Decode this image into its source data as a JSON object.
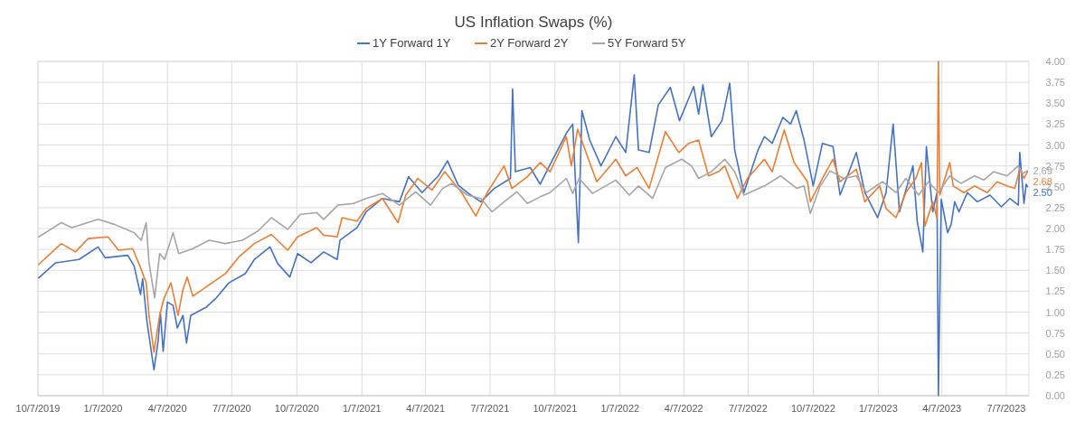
{
  "chart_data": {
    "type": "line",
    "title": "US Inflation Swaps (%)",
    "legend": "top",
    "grid": true,
    "line_style": "solid",
    "xlim": [
      "2019-10-07",
      "2023-08-08"
    ],
    "xticks": [
      {
        "value": "2019-10-07",
        "label": "10/7/2019"
      },
      {
        "value": "2020-01-07",
        "label": "1/7/2020"
      },
      {
        "value": "2020-04-07",
        "label": "4/7/2020"
      },
      {
        "value": "2020-07-07",
        "label": "7/7/2020"
      },
      {
        "value": "2020-10-07",
        "label": "10/7/2020"
      },
      {
        "value": "2021-01-07",
        "label": "1/7/2021"
      },
      {
        "value": "2021-04-07",
        "label": "4/7/2021"
      },
      {
        "value": "2021-07-07",
        "label": "7/7/2021"
      },
      {
        "value": "2021-10-07",
        "label": "10/7/2021"
      },
      {
        "value": "2022-01-07",
        "label": "1/7/2022"
      },
      {
        "value": "2022-04-07",
        "label": "4/7/2022"
      },
      {
        "value": "2022-07-07",
        "label": "7/7/2022"
      },
      {
        "value": "2022-10-07",
        "label": "10/7/2022"
      },
      {
        "value": "2023-01-07",
        "label": "1/7/2023"
      },
      {
        "value": "2023-04-07",
        "label": "4/7/2023"
      },
      {
        "value": "2023-07-07",
        "label": "7/7/2023"
      }
    ],
    "ylim": [
      0,
      4
    ],
    "yticks": [
      {
        "value": 0,
        "label": "0.00"
      },
      {
        "value": 0.25,
        "label": "0.25"
      },
      {
        "value": 0.5,
        "label": "0.50"
      },
      {
        "value": 0.75,
        "label": "0.75"
      },
      {
        "value": 1,
        "label": "1.00"
      },
      {
        "value": 1.25,
        "label": "1.25"
      },
      {
        "value": 1.5,
        "label": "1.50"
      },
      {
        "value": 1.75,
        "label": "1.75"
      },
      {
        "value": 2,
        "label": "2.00"
      },
      {
        "value": 2.25,
        "label": "2.25"
      },
      {
        "value": 2.5,
        "label": "2.50"
      },
      {
        "value": 2.75,
        "label": "2.75"
      },
      {
        "value": 3,
        "label": "3.00"
      },
      {
        "value": 3.25,
        "label": "3.25"
      },
      {
        "value": 3.5,
        "label": "3.50"
      },
      {
        "value": 3.75,
        "label": "3.75"
      },
      {
        "value": 4,
        "label": "4.00"
      }
    ],
    "annotations": [
      {
        "text": "2.50",
        "x": "2023-08-06",
        "y": 2.5
      },
      {
        "text": "2.68",
        "x": "2023-08-06",
        "y": 2.68
      },
      {
        "text": "2.69",
        "x": "2023-08-06",
        "y": 2.69
      }
    ],
    "series": [
      {
        "name": "1Y Forward 1Y",
        "color": "#4472c4",
        "x": [
          "2019-10-08",
          "2019-11-01",
          "2019-12-04",
          "2019-12-31",
          "2020-01-10",
          "2020-02-11",
          "2020-02-20",
          "2020-02-29",
          "2020-03-03",
          "2020-03-09",
          "2020-03-19",
          "2020-03-25",
          "2020-03-28",
          "2020-04-01",
          "2020-04-07",
          "2020-04-15",
          "2020-04-21",
          "2020-04-29",
          "2020-05-04",
          "2020-05-10",
          "2020-06-01",
          "2020-06-14",
          "2020-07-03",
          "2020-07-26",
          "2020-08-08",
          "2020-08-30",
          "2020-09-10",
          "2020-09-27",
          "2020-10-08",
          "2020-10-27",
          "2020-11-14",
          "2020-12-03",
          "2020-12-07",
          "2020-12-31",
          "2021-01-13",
          "2021-02-05",
          "2021-03-01",
          "2021-03-14",
          "2021-04-02",
          "2021-04-25",
          "2021-05-08",
          "2021-05-23",
          "2021-06-05",
          "2021-06-24",
          "2021-07-13",
          "2021-08-05",
          "2021-08-08",
          "2021-08-12",
          "2021-09-02",
          "2021-09-16",
          "2021-10-04",
          "2021-10-23",
          "2021-11-01",
          "2021-11-09",
          "2021-11-14",
          "2021-11-25",
          "2021-12-11",
          "2022-01-01",
          "2022-01-15",
          "2022-01-27",
          "2022-02-02",
          "2022-02-17",
          "2022-03-02",
          "2022-03-19",
          "2022-04-01",
          "2022-04-21",
          "2022-04-28",
          "2022-05-04",
          "2022-05-16",
          "2022-05-31",
          "2022-06-11",
          "2022-06-18",
          "2022-07-01",
          "2022-07-21",
          "2022-07-30",
          "2022-08-10",
          "2022-08-25",
          "2022-09-05",
          "2022-09-13",
          "2022-09-24",
          "2022-10-07",
          "2022-10-20",
          "2022-11-04",
          "2022-11-14",
          "2022-12-07",
          "2022-12-19",
          "2023-01-06",
          "2023-01-18",
          "2023-01-28",
          "2023-02-06",
          "2023-02-25",
          "2023-03-03",
          "2023-03-11",
          "2023-03-16",
          "2023-03-25",
          "2023-03-31",
          "2023-04-02",
          "2023-04-06",
          "2023-04-15",
          "2023-04-20",
          "2023-04-25",
          "2023-05-01",
          "2023-05-13",
          "2023-05-27",
          "2023-06-14",
          "2023-06-30",
          "2023-07-12",
          "2023-07-24",
          "2023-07-26",
          "2023-08-01",
          "2023-08-04",
          "2023-08-06"
        ],
        "values": [
          1.41,
          1.59,
          1.63,
          1.78,
          1.65,
          1.68,
          1.55,
          1.21,
          1.4,
          0.89,
          0.31,
          0.66,
          1.0,
          0.53,
          1.12,
          1.08,
          0.81,
          0.96,
          0.63,
          0.96,
          1.06,
          1.16,
          1.35,
          1.46,
          1.63,
          1.78,
          1.58,
          1.42,
          1.7,
          1.59,
          1.72,
          1.63,
          1.86,
          2.01,
          2.2,
          2.36,
          2.32,
          2.62,
          2.43,
          2.63,
          2.81,
          2.52,
          2.43,
          2.32,
          2.48,
          2.6,
          3.67,
          2.68,
          2.73,
          2.53,
          2.83,
          3.14,
          3.25,
          1.83,
          3.41,
          3.06,
          2.75,
          3.1,
          2.91,
          3.84,
          2.94,
          2.91,
          3.48,
          3.69,
          3.29,
          3.7,
          3.37,
          3.72,
          3.1,
          3.29,
          3.74,
          2.94,
          2.43,
          2.94,
          3.1,
          3.02,
          3.33,
          3.25,
          3.41,
          3.06,
          2.51,
          3.02,
          2.98,
          2.4,
          2.91,
          2.43,
          2.13,
          2.43,
          3.25,
          2.2,
          2.75,
          2.09,
          1.72,
          2.98,
          2.2,
          2.43,
          0.0,
          2.35,
          1.95,
          2.05,
          2.32,
          2.2,
          2.43,
          2.32,
          2.4,
          2.26,
          2.36,
          2.28,
          2.91,
          2.3,
          2.53,
          2.5
        ]
      },
      {
        "name": "2Y Forward 2Y",
        "color": "#ed7d31",
        "x": [
          "2019-10-08",
          "2019-11-09",
          "2019-11-29",
          "2019-12-17",
          "2020-01-14",
          "2020-01-29",
          "2020-02-18",
          "2020-03-01",
          "2020-03-08",
          "2020-03-12",
          "2020-03-19",
          "2020-03-27",
          "2020-04-02",
          "2020-04-12",
          "2020-04-22",
          "2020-04-29",
          "2020-05-05",
          "2020-05-13",
          "2020-06-09",
          "2020-06-28",
          "2020-07-17",
          "2020-08-08",
          "2020-09-01",
          "2020-09-24",
          "2020-10-08",
          "2020-11-04",
          "2020-11-14",
          "2020-12-03",
          "2020-12-10",
          "2020-12-31",
          "2021-01-13",
          "2021-02-05",
          "2021-02-27",
          "2021-03-10",
          "2021-03-27",
          "2021-04-16",
          "2021-05-04",
          "2021-05-28",
          "2021-06-17",
          "2021-07-03",
          "2021-07-27",
          "2021-08-07",
          "2021-08-29",
          "2021-09-16",
          "2021-09-30",
          "2021-10-23",
          "2021-10-30",
          "2021-11-08",
          "2021-11-25",
          "2021-12-05",
          "2022-01-01",
          "2022-01-15",
          "2022-01-31",
          "2022-02-17",
          "2022-03-12",
          "2022-03-31",
          "2022-04-14",
          "2022-04-28",
          "2022-05-12",
          "2022-05-26",
          "2022-06-04",
          "2022-06-22",
          "2022-07-06",
          "2022-07-30",
          "2022-08-10",
          "2022-08-27",
          "2022-09-10",
          "2022-09-29",
          "2022-10-03",
          "2022-10-22",
          "2022-11-04",
          "2022-11-14",
          "2022-12-07",
          "2022-12-19",
          "2023-01-09",
          "2023-01-18",
          "2023-02-01",
          "2023-02-15",
          "2023-03-01",
          "2023-03-09",
          "2023-03-14",
          "2023-03-25",
          "2023-03-31",
          "2023-04-02",
          "2023-04-04",
          "2023-04-18",
          "2023-04-23",
          "2023-05-08",
          "2023-05-23",
          "2023-06-10",
          "2023-06-24",
          "2023-07-08",
          "2023-07-19",
          "2023-07-26",
          "2023-08-01",
          "2023-08-06"
        ],
        "values": [
          1.57,
          1.82,
          1.72,
          1.88,
          1.9,
          1.74,
          1.76,
          1.51,
          1.35,
          0.96,
          0.52,
          0.96,
          1.16,
          1.35,
          0.96,
          1.27,
          1.42,
          1.19,
          1.35,
          1.46,
          1.66,
          1.82,
          1.93,
          1.74,
          1.9,
          2.01,
          1.92,
          1.9,
          2.13,
          2.09,
          2.24,
          2.36,
          2.07,
          2.4,
          2.6,
          2.46,
          2.68,
          2.43,
          2.15,
          2.43,
          2.75,
          2.48,
          2.62,
          2.79,
          2.68,
          3.1,
          2.75,
          3.19,
          2.79,
          2.56,
          2.83,
          2.63,
          2.73,
          2.48,
          3.16,
          2.91,
          3.02,
          3.06,
          2.63,
          2.68,
          2.75,
          2.36,
          2.6,
          2.83,
          2.68,
          3.18,
          2.79,
          2.56,
          2.32,
          2.63,
          2.83,
          2.56,
          2.71,
          2.32,
          2.51,
          2.24,
          2.13,
          2.43,
          2.6,
          2.79,
          2.03,
          2.32,
          2.13,
          4.0,
          2.4,
          2.79,
          2.51,
          2.43,
          2.51,
          2.43,
          2.56,
          2.51,
          2.48,
          2.71,
          2.6,
          2.68
        ]
      },
      {
        "name": "5Y Forward 5Y",
        "color": "#a5a5a5",
        "x": [
          "2019-10-08",
          "2019-11-09",
          "2019-11-24",
          "2019-12-31",
          "2020-01-23",
          "2020-02-20",
          "2020-03-01",
          "2020-03-08",
          "2020-03-12",
          "2020-03-20",
          "2020-03-27",
          "2020-04-03",
          "2020-04-15",
          "2020-04-23",
          "2020-05-13",
          "2020-06-05",
          "2020-06-28",
          "2020-07-22",
          "2020-08-13",
          "2020-09-01",
          "2020-09-24",
          "2020-10-12",
          "2020-11-04",
          "2020-11-14",
          "2020-12-04",
          "2020-12-26",
          "2021-01-13",
          "2021-02-05",
          "2021-03-01",
          "2021-03-24",
          "2021-04-14",
          "2021-05-01",
          "2021-05-14",
          "2021-06-05",
          "2021-06-24",
          "2021-07-10",
          "2021-07-27",
          "2021-08-14",
          "2021-08-29",
          "2021-09-16",
          "2021-09-30",
          "2021-10-23",
          "2021-11-01",
          "2021-11-10",
          "2021-11-29",
          "2022-01-01",
          "2022-01-20",
          "2022-02-02",
          "2022-02-22",
          "2022-03-12",
          "2022-04-04",
          "2022-04-18",
          "2022-04-28",
          "2022-05-16",
          "2022-06-04",
          "2022-06-18",
          "2022-07-01",
          "2022-07-30",
          "2022-08-22",
          "2022-09-14",
          "2022-09-24",
          "2022-10-03",
          "2022-10-17",
          "2022-10-31",
          "2022-11-19",
          "2022-12-07",
          "2022-12-21",
          "2023-01-13",
          "2023-02-01",
          "2023-02-15",
          "2023-03-05",
          "2023-03-19",
          "2023-04-02",
          "2023-04-18",
          "2023-05-04",
          "2023-05-23",
          "2023-06-05",
          "2023-06-19",
          "2023-07-08",
          "2023-07-24",
          "2023-07-30",
          "2023-08-06"
        ],
        "values": [
          1.9,
          2.07,
          2.01,
          2.11,
          2.05,
          1.95,
          1.86,
          2.07,
          1.59,
          1.17,
          1.7,
          1.63,
          1.95,
          1.7,
          1.76,
          1.86,
          1.82,
          1.86,
          1.97,
          2.13,
          1.99,
          2.17,
          2.19,
          2.11,
          2.28,
          2.3,
          2.36,
          2.42,
          2.28,
          2.44,
          2.28,
          2.48,
          2.54,
          2.4,
          2.36,
          2.2,
          2.32,
          2.44,
          2.3,
          2.38,
          2.43,
          2.6,
          2.42,
          2.6,
          2.42,
          2.58,
          2.4,
          2.51,
          2.36,
          2.73,
          2.83,
          2.75,
          2.6,
          2.68,
          2.83,
          2.68,
          2.4,
          2.51,
          2.63,
          2.48,
          2.51,
          2.18,
          2.51,
          2.69,
          2.6,
          2.63,
          2.43,
          2.56,
          2.43,
          2.6,
          2.4,
          2.56,
          2.43,
          2.63,
          2.54,
          2.63,
          2.58,
          2.68,
          2.63,
          2.75,
          2.66,
          2.69
        ]
      }
    ]
  }
}
